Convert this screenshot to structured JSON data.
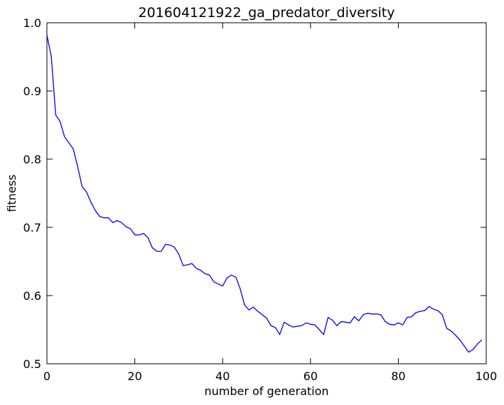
{
  "chart_data": {
    "type": "line",
    "title": "201604121922_ga_predator_diversity",
    "xlabel": "number of generation",
    "ylabel": "fitness",
    "xlim": [
      0,
      100
    ],
    "ylim": [
      0.5,
      1.0
    ],
    "xticks": [
      0,
      20,
      40,
      60,
      80,
      100
    ],
    "yticks": [
      0.5,
      0.6,
      0.7,
      0.8,
      0.9,
      1.0
    ],
    "xtick_labels": [
      "0",
      "20",
      "40",
      "60",
      "80",
      "100"
    ],
    "ytick_labels": [
      "0.5",
      "0.6",
      "0.7",
      "0.8",
      "0.9",
      "1.0"
    ],
    "grid": false,
    "series_color": "#0000ff",
    "x": [
      0,
      1,
      2,
      3,
      4,
      5,
      6,
      7,
      8,
      9,
      10,
      11,
      12,
      13,
      14,
      15,
      16,
      17,
      18,
      19,
      20,
      21,
      22,
      23,
      24,
      25,
      26,
      27,
      28,
      29,
      30,
      31,
      32,
      33,
      34,
      35,
      36,
      37,
      38,
      39,
      40,
      41,
      42,
      43,
      44,
      45,
      46,
      47,
      48,
      49,
      50,
      51,
      52,
      53,
      54,
      55,
      56,
      57,
      58,
      59,
      60,
      61,
      62,
      63,
      64,
      65,
      66,
      67,
      68,
      69,
      70,
      71,
      72,
      73,
      74,
      75,
      76,
      77,
      78,
      79,
      80,
      81,
      82,
      83,
      84,
      85,
      86,
      87,
      88,
      89,
      90,
      91,
      92,
      93,
      94,
      95,
      96,
      97,
      98,
      99
    ],
    "y": [
      0.982,
      0.95,
      0.865,
      0.855,
      0.833,
      0.824,
      0.815,
      0.789,
      0.76,
      0.752,
      0.737,
      0.725,
      0.716,
      0.714,
      0.714,
      0.707,
      0.71,
      0.707,
      0.701,
      0.698,
      0.689,
      0.689,
      0.691,
      0.685,
      0.67,
      0.665,
      0.665,
      0.675,
      0.674,
      0.671,
      0.661,
      0.644,
      0.645,
      0.647,
      0.64,
      0.637,
      0.632,
      0.63,
      0.62,
      0.617,
      0.614,
      0.626,
      0.63,
      0.627,
      0.61,
      0.586,
      0.579,
      0.583,
      0.577,
      0.572,
      0.567,
      0.556,
      0.553,
      0.543,
      0.561,
      0.557,
      0.554,
      0.555,
      0.556,
      0.56,
      0.558,
      0.557,
      0.55,
      0.543,
      0.568,
      0.564,
      0.556,
      0.562,
      0.561,
      0.56,
      0.569,
      0.563,
      0.572,
      0.574,
      0.573,
      0.573,
      0.572,
      0.562,
      0.558,
      0.557,
      0.56,
      0.557,
      0.568,
      0.569,
      0.575,
      0.577,
      0.578,
      0.584,
      0.58,
      0.578,
      0.572,
      0.552,
      0.548,
      0.542,
      0.535,
      0.526,
      0.517,
      0.521,
      0.529,
      0.535
    ]
  }
}
